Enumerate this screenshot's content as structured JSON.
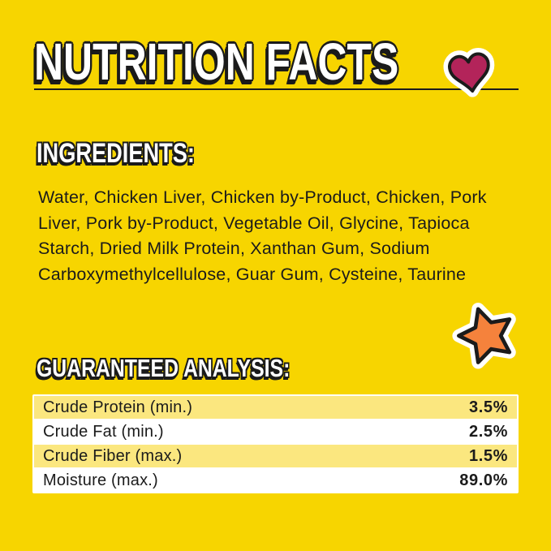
{
  "colors": {
    "background": "#F7D500",
    "ink": "#1B1B1B",
    "heading_fill": "#FFFFFF",
    "heart": "#B3245A",
    "star": "#F5823C",
    "row_yellow": "#FBE77F",
    "row_white": "#FFFFFF"
  },
  "header": {
    "title": "NUTRITION FACTS"
  },
  "ingredients": {
    "heading": "INGREDIENTS:",
    "text": "Water, Chicken Liver, Chicken by-Product, Chicken, Pork Liver, Pork by-Product, Vegetable Oil, Glycine, Tapioca Starch, Dried Milk Protein, Xanthan Gum, Sodium Carboxymethylcellulose, Guar Gum, Cysteine, Taurine"
  },
  "analysis": {
    "heading": "GUARANTEED ANALYSIS:",
    "rows": [
      {
        "label": "Crude Protein (min.)",
        "value": "3.5%"
      },
      {
        "label": "Crude Fat (min.)",
        "value": "2.5%"
      },
      {
        "label": "Crude Fiber (max.)",
        "value": "1.5%"
      },
      {
        "label": "Moisture (max.)",
        "value": "89.0%"
      }
    ]
  },
  "icons": {
    "heart": "heart-icon",
    "star": "star-icon"
  }
}
